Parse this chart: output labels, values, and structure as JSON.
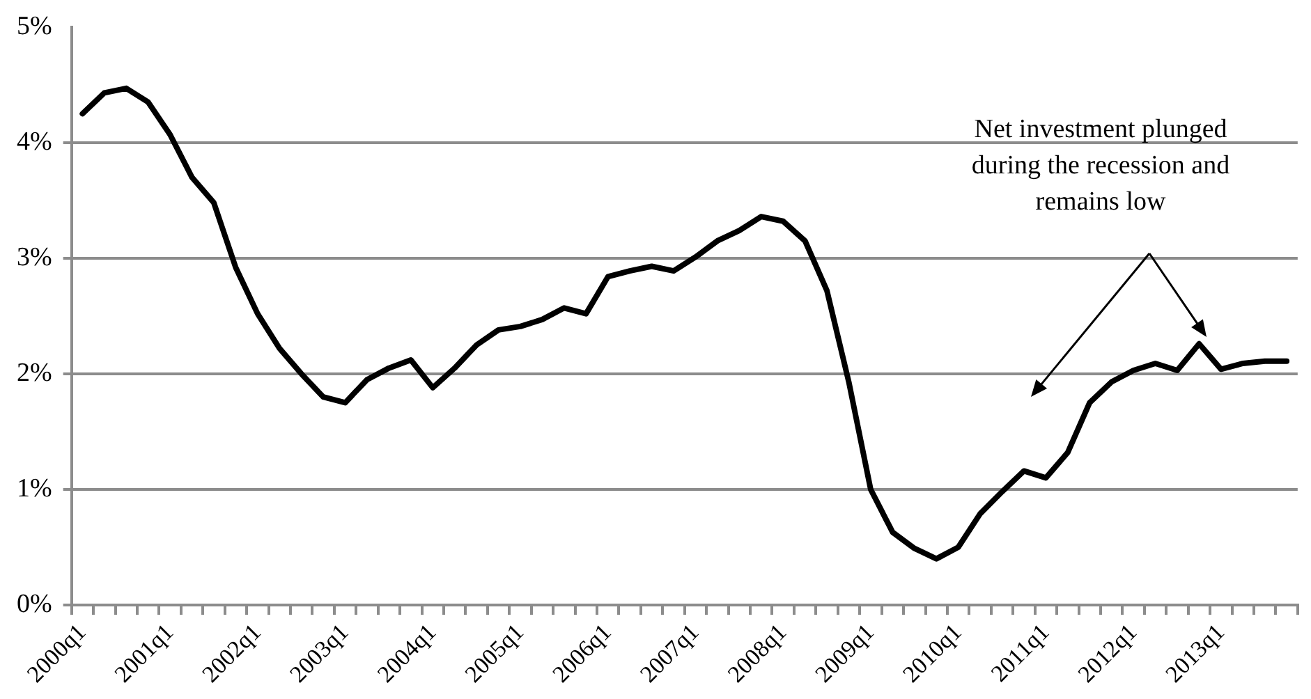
{
  "chart_data": {
    "type": "line",
    "categories": [
      "2000q1",
      null,
      null,
      null,
      "2001q1",
      null,
      null,
      null,
      "2002q1",
      null,
      null,
      null,
      "2003q1",
      null,
      null,
      null,
      "2004q1",
      null,
      null,
      null,
      "2005q1",
      null,
      null,
      null,
      "2006q1",
      null,
      null,
      null,
      "2007q1",
      null,
      null,
      null,
      "2008q1",
      null,
      null,
      null,
      "2009q1",
      null,
      null,
      null,
      "2010q1",
      null,
      null,
      null,
      "2011q1",
      null,
      null,
      null,
      "2012q1",
      null,
      null,
      null,
      "2013q1",
      null,
      null,
      null
    ],
    "series": [
      {
        "color": "#000000",
        "values": [
          4.25,
          4.43,
          4.47,
          4.35,
          4.07,
          3.7,
          3.48,
          2.92,
          2.52,
          2.22,
          2.0,
          1.8,
          1.75,
          1.95,
          2.05,
          2.12,
          1.88,
          2.05,
          2.25,
          2.38,
          2.41,
          2.47,
          2.57,
          2.52,
          2.84,
          2.89,
          2.93,
          2.89,
          3.01,
          3.15,
          3.24,
          3.36,
          3.32,
          3.15,
          2.72,
          1.93,
          1.0,
          0.63,
          0.49,
          0.4,
          0.5,
          0.79,
          0.98,
          1.16,
          1.1,
          1.32,
          1.75,
          1.93,
          2.03,
          2.09,
          2.03,
          2.26,
          2.04,
          2.09,
          2.11,
          2.11
        ]
      }
    ],
    "ylim": [
      0,
      5
    ],
    "yticks": [
      {
        "value": 0,
        "label": "0%"
      },
      {
        "value": 1,
        "label": "1%"
      },
      {
        "value": 2,
        "label": "2%"
      },
      {
        "value": 3,
        "label": "3%"
      },
      {
        "value": 4,
        "label": "4%"
      },
      {
        "value": 5,
        "label": "5%"
      }
    ],
    "grid": "y",
    "legend": false,
    "marker": "none",
    "line_style": "solid",
    "annotations": [
      "Net investment plunged during the recession and remains low"
    ]
  }
}
